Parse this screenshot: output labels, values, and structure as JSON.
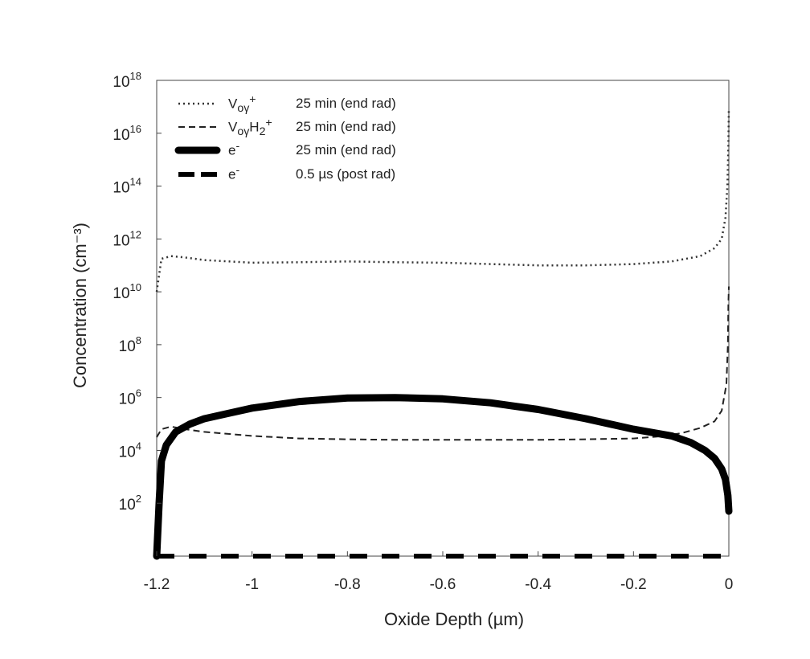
{
  "chart_data": {
    "type": "line",
    "xlabel": "Oxide Depth (µm)",
    "ylabel": "Concentration (cm⁻³)",
    "xlim": [
      -1.2,
      0
    ],
    "ylim_log10": [
      0,
      18
    ],
    "y_scale": "log",
    "grid": false,
    "legend_position": "top-left",
    "x_ticks": [
      "-1.2",
      "-1",
      "-0.8",
      "-0.6",
      "-0.4",
      "-0.2",
      "0"
    ],
    "y_ticks": [
      {
        "base": "10",
        "exp": "18",
        "log": 18
      },
      {
        "base": "10",
        "exp": "16",
        "log": 16
      },
      {
        "base": "10",
        "exp": "14",
        "log": 14
      },
      {
        "base": "10",
        "exp": "12",
        "log": 12
      },
      {
        "base": "10",
        "exp": "10",
        "log": 10
      },
      {
        "base": "10",
        "exp": "8",
        "log": 8
      },
      {
        "base": "10",
        "exp": "6",
        "log": 6
      },
      {
        "base": "10",
        "exp": "4",
        "log": 4
      },
      {
        "base": "10",
        "exp": "2",
        "log": 2
      }
    ],
    "series": [
      {
        "legend_label": "V<sub>oγ</sub><sup>+</sup>",
        "legend_time": "25 min (end rad)",
        "style": "dotted",
        "points_x": [
          -1.2,
          -1.19,
          -1.17,
          -1.14,
          -1.1,
          -1.0,
          -0.9,
          -0.8,
          -0.7,
          -0.6,
          -0.5,
          -0.4,
          -0.3,
          -0.2,
          -0.12,
          -0.06,
          -0.03,
          -0.015,
          -0.007,
          -0.003,
          -0.001,
          0
        ],
        "points_log10": [
          10.0,
          11.25,
          11.35,
          11.3,
          11.2,
          11.1,
          11.12,
          11.15,
          11.12,
          11.1,
          11.05,
          11.0,
          11.0,
          11.05,
          11.15,
          11.35,
          11.65,
          12.0,
          12.8,
          14.0,
          15.5,
          16.9
        ]
      },
      {
        "legend_label": "V<sub>oγ</sub>H<sub>2</sub><sup>+</sup>",
        "legend_time": "25 min (end rad)",
        "style": "dashed",
        "points_x": [
          -1.2,
          -1.19,
          -1.17,
          -1.14,
          -1.1,
          -1.0,
          -0.9,
          -0.8,
          -0.7,
          -0.6,
          -0.5,
          -0.4,
          -0.3,
          -0.2,
          -0.15,
          -0.1,
          -0.06,
          -0.03,
          -0.015,
          -0.005,
          -0.002,
          -0.001,
          0
        ],
        "points_log10": [
          4.5,
          4.8,
          4.9,
          4.8,
          4.7,
          4.55,
          4.45,
          4.42,
          4.4,
          4.4,
          4.4,
          4.4,
          4.42,
          4.45,
          4.52,
          4.65,
          4.85,
          5.1,
          5.5,
          6.5,
          8.0,
          9.5,
          10.2
        ]
      },
      {
        "legend_label": "e<sup>-</sup>",
        "legend_time": "25 min (end rad)",
        "style": "thick-solid",
        "points_x": [
          -1.2,
          -1.195,
          -1.19,
          -1.18,
          -1.16,
          -1.13,
          -1.1,
          -1.05,
          -1.0,
          -0.9,
          -0.8,
          -0.7,
          -0.6,
          -0.5,
          -0.4,
          -0.3,
          -0.2,
          -0.12,
          -0.08,
          -0.05,
          -0.03,
          -0.015,
          -0.007,
          -0.002,
          0
        ],
        "points_log10": [
          0.0,
          2.0,
          3.6,
          4.2,
          4.7,
          5.0,
          5.2,
          5.4,
          5.6,
          5.85,
          5.98,
          6.0,
          5.95,
          5.8,
          5.55,
          5.2,
          4.8,
          4.55,
          4.3,
          4.0,
          3.7,
          3.3,
          2.9,
          2.3,
          1.7
        ]
      },
      {
        "legend_label": "e<sup>-</sup>",
        "legend_time": "0.5 µs  (post rad)",
        "style": "thick-dashed",
        "points_x": [
          -1.2,
          0
        ],
        "points_log10": [
          0.0,
          0.0
        ]
      }
    ]
  }
}
